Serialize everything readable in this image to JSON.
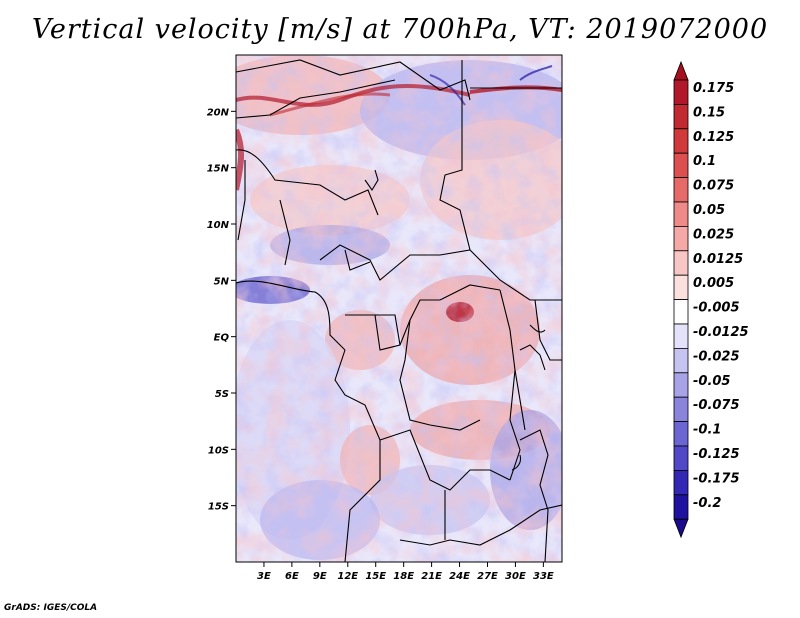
{
  "title": "Vertical velocity [m/s] at 700hPa, VT: 2019072000",
  "credit": "GrADS: IGES/COLA",
  "map": {
    "projection": "lat-lon",
    "lon_range": [
      0,
      35
    ],
    "lat_range": [
      -20,
      25
    ],
    "lon_ticks": [
      {
        "value": 3,
        "label": "3E"
      },
      {
        "value": 6,
        "label": "6E"
      },
      {
        "value": 9,
        "label": "9E"
      },
      {
        "value": 12,
        "label": "12E"
      },
      {
        "value": 15,
        "label": "15E"
      },
      {
        "value": 18,
        "label": "18E"
      },
      {
        "value": 21,
        "label": "21E"
      },
      {
        "value": 24,
        "label": "24E"
      },
      {
        "value": 27,
        "label": "27E"
      },
      {
        "value": 30,
        "label": "30E"
      },
      {
        "value": 33,
        "label": "33E"
      }
    ],
    "lat_ticks": [
      {
        "value": 20,
        "label": "20N"
      },
      {
        "value": 15,
        "label": "15N"
      },
      {
        "value": 10,
        "label": "10N"
      },
      {
        "value": 5,
        "label": "5N"
      },
      {
        "value": 0,
        "label": "EQ"
      },
      {
        "value": -5,
        "label": "5S"
      },
      {
        "value": -10,
        "label": "10S"
      },
      {
        "value": -15,
        "label": "15S"
      }
    ]
  },
  "colorbar": {
    "levels": [
      {
        "label": "0.175",
        "color": "#b2182b"
      },
      {
        "label": "0.15",
        "color": "#c12a31"
      },
      {
        "label": "0.125",
        "color": "#d03a3a"
      },
      {
        "label": "0.1",
        "color": "#dc5050"
      },
      {
        "label": "0.075",
        "color": "#e56a68"
      },
      {
        "label": "0.05",
        "color": "#ee8a88"
      },
      {
        "label": "0.025",
        "color": "#f4a9a7"
      },
      {
        "label": "0.0125",
        "color": "#f8c6c4"
      },
      {
        "label": "0.005",
        "color": "#fbe0de"
      },
      {
        "label": "-0.005",
        "color": "#ffffff"
      },
      {
        "label": "-0.0125",
        "color": "#e4e2f8"
      },
      {
        "label": "-0.025",
        "color": "#c6c3f0"
      },
      {
        "label": "-0.05",
        "color": "#a8a3e6"
      },
      {
        "label": "-0.075",
        "color": "#8a84dc"
      },
      {
        "label": "-0.1",
        "color": "#6c66d2"
      },
      {
        "label": "-0.125",
        "color": "#5048c6"
      },
      {
        "label": "-0.175",
        "color": "#3328b6"
      },
      {
        "label": "-0.2",
        "color": "#1f129e"
      }
    ],
    "top_color": "#a50f1e",
    "bottom_color": "#1c0a8c"
  }
}
